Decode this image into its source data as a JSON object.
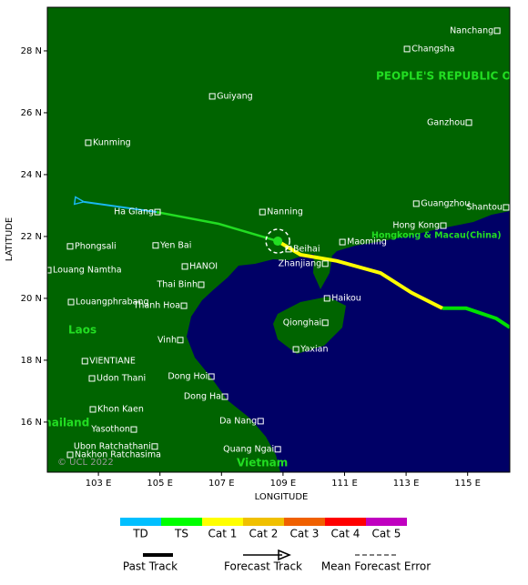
{
  "map": {
    "xlabel": "LONGITUDE",
    "ylabel": "LATITUDE",
    "xlim": [
      101.34,
      116.37
    ],
    "ylim": [
      14.38,
      29.41
    ],
    "xticks": [
      {
        "value": 103,
        "label": "103 E"
      },
      {
        "value": 105,
        "label": "105 E"
      },
      {
        "value": 107,
        "label": "107 E"
      },
      {
        "value": 109,
        "label": "109 E"
      },
      {
        "value": 111,
        "label": "111 E"
      },
      {
        "value": 113,
        "label": "113 E"
      },
      {
        "value": 115,
        "label": "115 E"
      }
    ],
    "yticks": [
      {
        "value": 16,
        "label": "16 N"
      },
      {
        "value": 18,
        "label": "18 N"
      },
      {
        "value": 20,
        "label": "20 N"
      },
      {
        "value": 22,
        "label": "22 N"
      },
      {
        "value": 24,
        "label": "24 N"
      },
      {
        "value": 26,
        "label": "26 N"
      },
      {
        "value": 28,
        "label": "28 N"
      }
    ],
    "regions": [
      "PEOPLE'S REPUBLIC OF CHINA",
      "Hongkong & Macau(China)",
      "Laos",
      "Thailand",
      "Vietnam"
    ],
    "copyright": "© UCL 2022",
    "cities": [
      {
        "name": "Nanchang",
        "lon": 115.96,
        "lat": 28.65
      },
      {
        "name": "Changsha",
        "lon": 113.03,
        "lat": 28.06
      },
      {
        "name": "Guiyang",
        "lon": 106.7,
        "lat": 26.53
      },
      {
        "name": "Ganzhou",
        "lon": 115.04,
        "lat": 25.68
      },
      {
        "name": "Kunming",
        "lon": 102.67,
        "lat": 25.03
      },
      {
        "name": "Nanning",
        "lon": 108.33,
        "lat": 22.79
      },
      {
        "name": "Guangzhou",
        "lon": 113.33,
        "lat": 23.06
      },
      {
        "name": "Ha Giang",
        "lon": 104.92,
        "lat": 22.79
      },
      {
        "name": "Hong Kong",
        "lon": 114.21,
        "lat": 22.35
      },
      {
        "name": "Shantou",
        "lon": 116.25,
        "lat": 22.94
      },
      {
        "name": "Phongsali",
        "lon": 102.08,
        "lat": 21.68
      },
      {
        "name": "Yen Bai",
        "lon": 104.86,
        "lat": 21.71
      },
      {
        "name": "Beihai",
        "lon": 109.18,
        "lat": 21.59
      },
      {
        "name": "Maoming",
        "lon": 110.93,
        "lat": 21.82
      },
      {
        "name": "HANOI",
        "lon": 105.81,
        "lat": 21.03
      },
      {
        "name": "Zhanjiang",
        "lon": 110.37,
        "lat": 21.12
      },
      {
        "name": "Louang Namtha",
        "lon": 101.37,
        "lat": 20.91
      },
      {
        "name": "Thai Binh",
        "lon": 106.34,
        "lat": 20.44
      },
      {
        "name": "Haikou",
        "lon": 110.43,
        "lat": 20.0
      },
      {
        "name": "Louangphrabang",
        "lon": 102.11,
        "lat": 19.88
      },
      {
        "name": "Thanh Hoa",
        "lon": 105.78,
        "lat": 19.76
      },
      {
        "name": "Qionghai",
        "lon": 110.37,
        "lat": 19.21
      },
      {
        "name": "Vinh",
        "lon": 105.66,
        "lat": 18.65
      },
      {
        "name": "Yaxian",
        "lon": 109.42,
        "lat": 18.35
      },
      {
        "name": "VIENTIANE",
        "lon": 102.56,
        "lat": 17.97
      },
      {
        "name": "Udon Thani",
        "lon": 102.79,
        "lat": 17.41
      },
      {
        "name": "Dong Hoi",
        "lon": 106.67,
        "lat": 17.47
      },
      {
        "name": "Dong Ha",
        "lon": 107.11,
        "lat": 16.82
      },
      {
        "name": "Khon Kaen",
        "lon": 102.82,
        "lat": 16.41
      },
      {
        "name": "Da Nang",
        "lon": 108.27,
        "lat": 16.03
      },
      {
        "name": "Yasothon",
        "lon": 104.15,
        "lat": 15.76
      },
      {
        "name": "Ubon Ratchathani",
        "lon": 104.83,
        "lat": 15.21
      },
      {
        "name": "Nakhon Ratchasima",
        "lon": 102.08,
        "lat": 14.94
      },
      {
        "name": "Quang Ngai",
        "lon": 108.83,
        "lat": 15.12
      }
    ],
    "past_track": [
      {
        "color": "#00e000",
        "lon": [
          116.37,
          115.93,
          114.95,
          114.18
        ],
        "lat": [
          19.06,
          19.35,
          19.68,
          19.68
        ]
      },
      {
        "color": "#ffff00",
        "lon": [
          114.18,
          113.18,
          112.17,
          110.75,
          109.57,
          108.83
        ],
        "lat": [
          19.68,
          20.18,
          20.82,
          21.21,
          21.41,
          21.85
        ]
      }
    ],
    "forecast_track": [
      {
        "color": "#22dd22",
        "lon": [
          108.83,
          106.91,
          104.89
        ],
        "lat": [
          21.85,
          22.41,
          22.79
        ]
      },
      {
        "color": "#1ab8f0",
        "lon": [
          104.89,
          102.53
        ],
        "lat": [
          22.79,
          23.12
        ]
      }
    ],
    "current_position": {
      "lon": 108.83,
      "lat": 21.85,
      "color": "#22dd22"
    }
  },
  "legend": {
    "scale": [
      {
        "label": "TD",
        "color": "#00bfff"
      },
      {
        "label": "TS",
        "color": "#00ff00"
      },
      {
        "label": "Cat 1",
        "color": "#ffff00"
      },
      {
        "label": "Cat 2",
        "color": "#f0c000"
      },
      {
        "label": "Cat 3",
        "color": "#f06000"
      },
      {
        "label": "Cat 4",
        "color": "#ff0000"
      },
      {
        "label": "Cat 5",
        "color": "#c000c0"
      }
    ],
    "keys": [
      "Past Track",
      "Forecast Track",
      "Mean Forecast Error"
    ]
  }
}
